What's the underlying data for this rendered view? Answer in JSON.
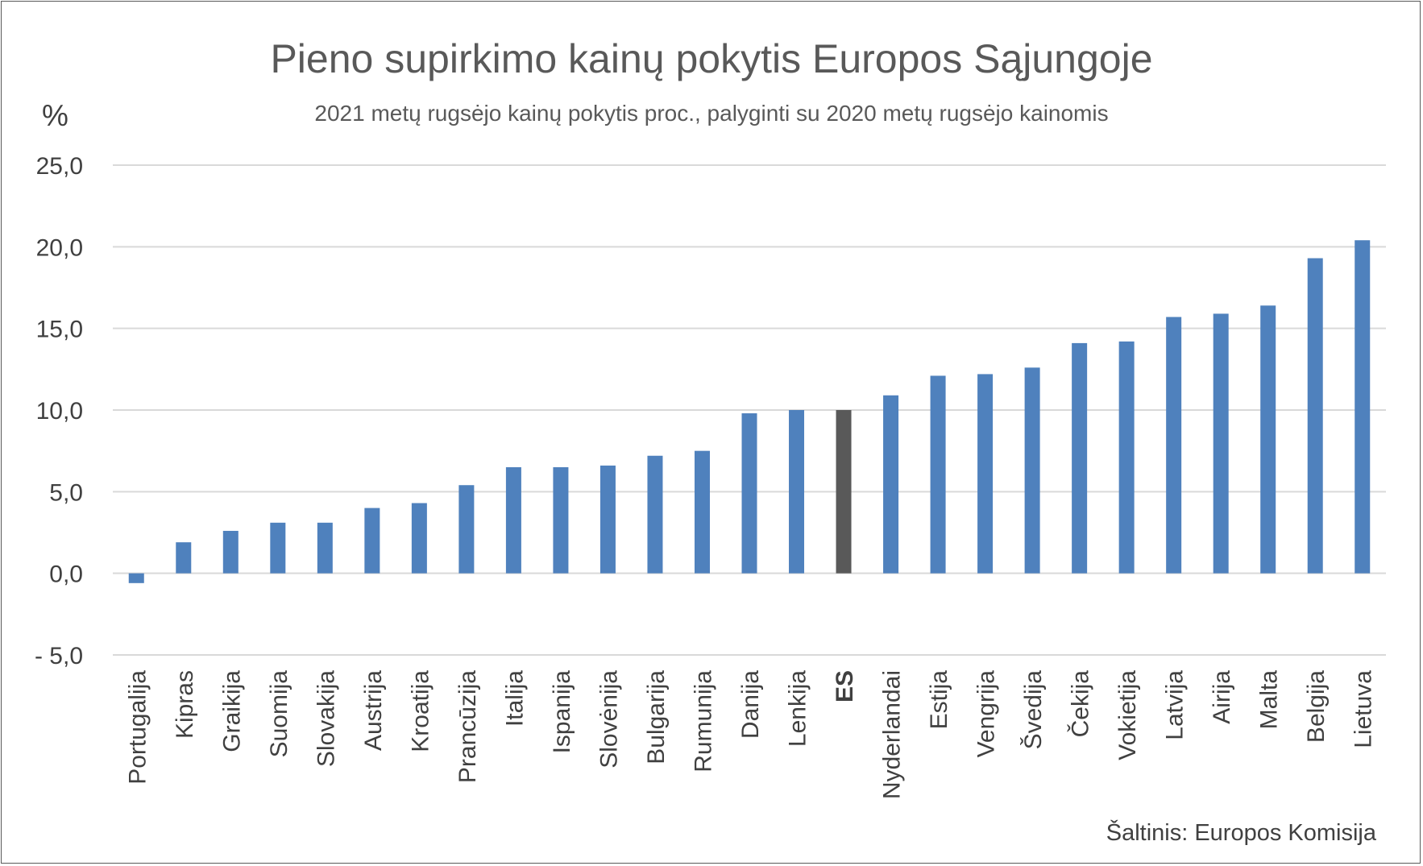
{
  "chart_data": {
    "type": "bar",
    "title": "Pieno supirkimo kainų pokytis Europos Sąjungoje",
    "subtitle": "2021 metų rugsėjo kainų pokytis proc., palyginti su 2020 metų rugsėjo kainomis",
    "ylabel": "%",
    "xlabel": "",
    "source": "Šaltinis: Europos Komisija",
    "ylim": [
      -5,
      25
    ],
    "yticks": [
      -5,
      0,
      5,
      10,
      15,
      20,
      25
    ],
    "ytick_labels": [
      "- 5,0",
      "0,0",
      "5,0",
      "10,0",
      "15,0",
      "20,0",
      "25,0"
    ],
    "grid": "horizontal",
    "legend": "none",
    "categories": [
      "Portugalija",
      "Kipras",
      "Graikija",
      "Suomija",
      "Slovakija",
      "Austrija",
      "Kroatija",
      "Prancūzija",
      "Italija",
      "Ispanija",
      "Slovėnija",
      "Bulgarija",
      "Rumunija",
      "Danija",
      "Lenkija",
      "ES",
      "Nyderlandai",
      "Estija",
      "Vengrija",
      "Švedija",
      "Čekija",
      "Vokietija",
      "Latvija",
      "Airija",
      "Malta",
      "Belgija",
      "Lietuva"
    ],
    "values": [
      -0.6,
      1.9,
      2.6,
      3.1,
      3.1,
      4.0,
      4.3,
      5.4,
      6.5,
      6.5,
      6.6,
      7.2,
      7.5,
      9.8,
      10.0,
      10.0,
      10.9,
      12.1,
      12.2,
      12.6,
      14.1,
      14.2,
      15.7,
      15.9,
      16.4,
      19.3,
      20.4
    ],
    "highlight_category": "ES",
    "colors": {
      "bar": "#4f81bd",
      "highlight": "#595959",
      "grid": "#d9d9d9",
      "text": "#404040"
    }
  }
}
